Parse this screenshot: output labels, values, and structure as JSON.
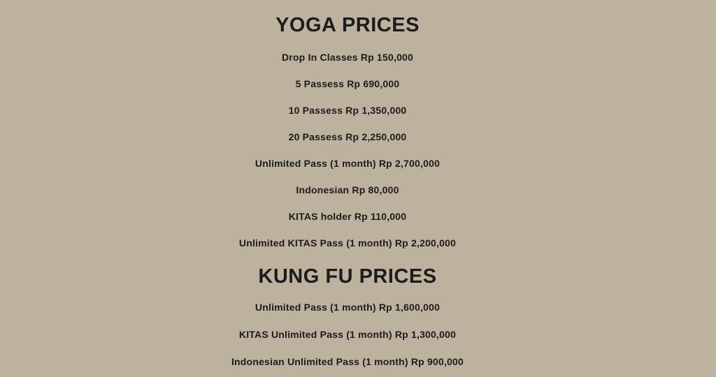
{
  "page": {
    "background_color": "#bcb29e",
    "text_color": "#1c1c1c"
  },
  "sections": [
    {
      "title": "YOGA PRICES",
      "items": [
        "Drop In Classes Rp 150,000",
        "5 Passess Rp 690,000",
        "10 Passess Rp 1,350,000",
        "20 Passess Rp 2,250,000",
        "Unlimited Pass (1 month) Rp 2,700,000",
        "Indonesian Rp 80,000",
        "KITAS holder Rp 110,000",
        "Unlimited KITAS Pass (1 month) Rp 2,200,000"
      ]
    },
    {
      "title": "KUNG FU PRICES",
      "items": [
        "Unlimited Pass (1 month) Rp 1,600,000",
        "KITAS Unlimited Pass (1 month) Rp 1,300,000",
        "Indonesian Unlimited Pass (1 month) Rp 900,000"
      ]
    }
  ]
}
